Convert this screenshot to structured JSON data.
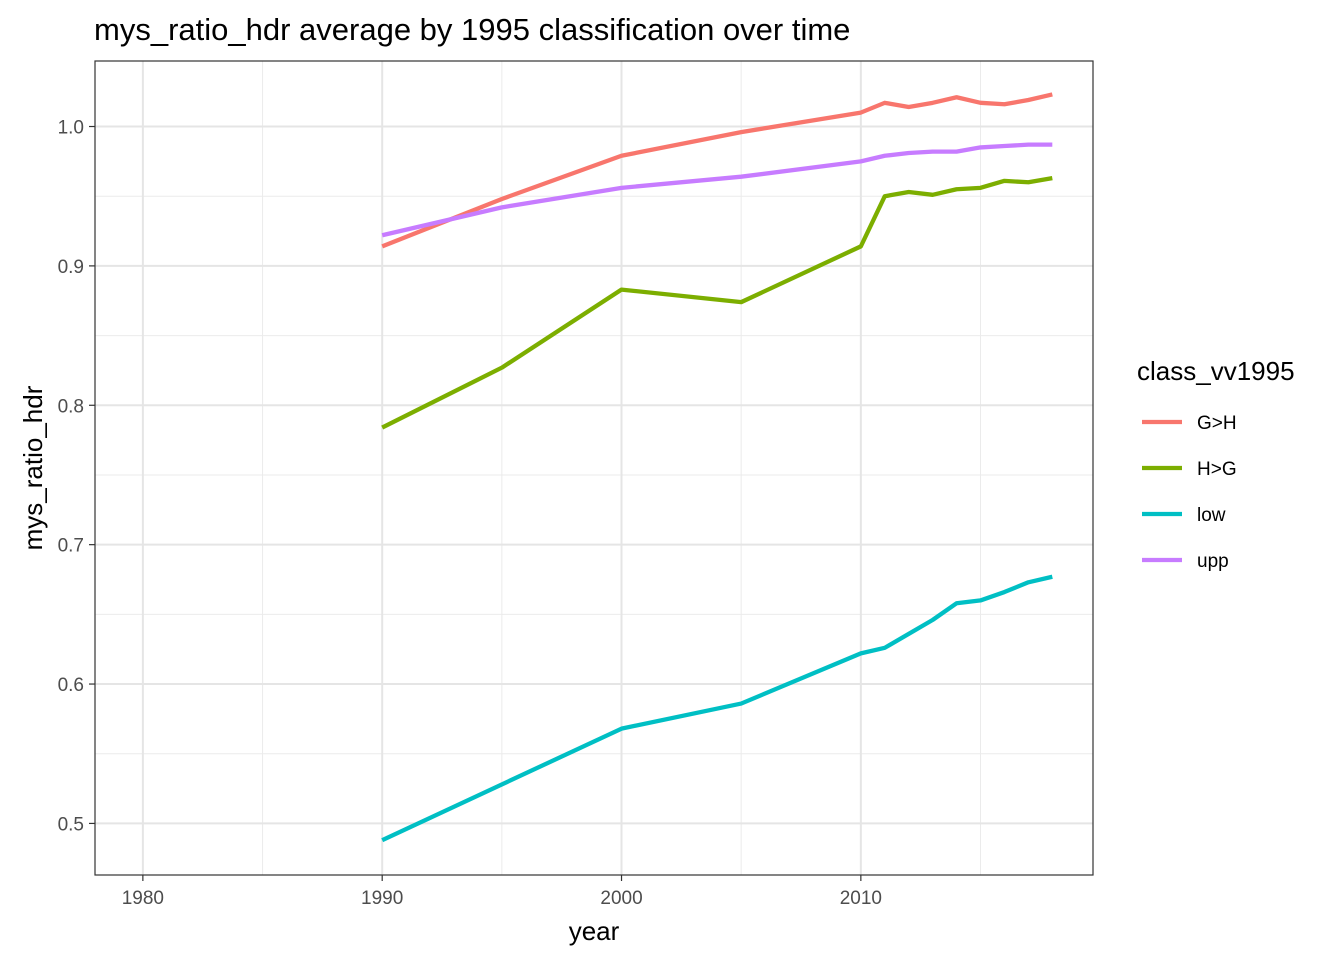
{
  "chart_data": {
    "type": "line",
    "title": "mys_ratio_hdr average by 1995 classification over time",
    "xlabel": "year",
    "ylabel": "mys_ratio_hdr",
    "xlim": [
      1978,
      2019.7
    ],
    "ylim": [
      0.463,
      1.047
    ],
    "x_ticks": [
      1980,
      1990,
      2000,
      2010
    ],
    "x_tick_labels": [
      "1980",
      "1990",
      "2000",
      "2010"
    ],
    "y_ticks": [
      0.5,
      0.6,
      0.7,
      0.8,
      0.9,
      1.0
    ],
    "y_tick_labels": [
      "0.5",
      "0.6",
      "0.7",
      "0.8",
      "0.9",
      "1.0"
    ],
    "grid": true,
    "legend": {
      "title": "class_vv1995",
      "position": "right"
    },
    "series": [
      {
        "name": "G>H",
        "color": "#F8766D",
        "x": [
          1990,
          1995,
          2000,
          2005,
          2010,
          2011,
          2012,
          2013,
          2014,
          2015,
          2016,
          2017,
          2018
        ],
        "y": [
          0.914,
          0.948,
          0.979,
          0.996,
          1.01,
          1.017,
          1.014,
          1.017,
          1.021,
          1.017,
          1.016,
          1.019,
          1.023
        ]
      },
      {
        "name": "H>G",
        "color": "#7CAE00",
        "x": [
          1990,
          1995,
          2000,
          2005,
          2010,
          2011,
          2012,
          2013,
          2014,
          2015,
          2016,
          2017,
          2018
        ],
        "y": [
          0.784,
          0.827,
          0.883,
          0.874,
          0.914,
          0.95,
          0.953,
          0.951,
          0.955,
          0.956,
          0.961,
          0.96,
          0.963
        ]
      },
      {
        "name": "low",
        "color": "#00BFC4",
        "x": [
          1990,
          1995,
          2000,
          2005,
          2010,
          2011,
          2012,
          2013,
          2014,
          2015,
          2016,
          2017,
          2018
        ],
        "y": [
          0.488,
          0.528,
          0.568,
          0.586,
          0.622,
          0.626,
          0.636,
          0.646,
          0.658,
          0.66,
          0.666,
          0.673,
          0.677
        ]
      },
      {
        "name": "upp",
        "color": "#C77CFF",
        "x": [
          1990,
          1995,
          2000,
          2005,
          2010,
          2011,
          2012,
          2013,
          2014,
          2015,
          2016,
          2017,
          2018
        ],
        "y": [
          0.922,
          0.942,
          0.956,
          0.964,
          0.975,
          0.979,
          0.981,
          0.982,
          0.982,
          0.985,
          0.986,
          0.987,
          0.987
        ]
      }
    ]
  }
}
